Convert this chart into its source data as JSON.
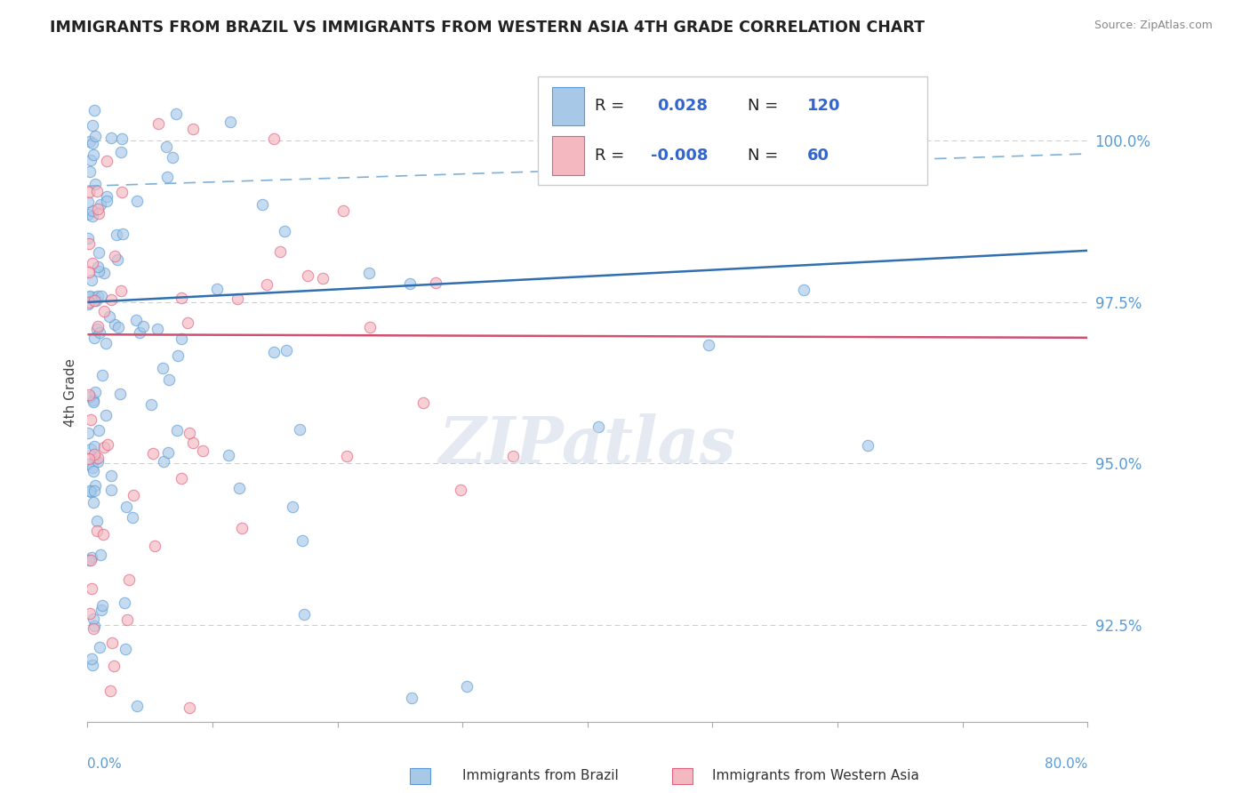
{
  "title": "IMMIGRANTS FROM BRAZIL VS IMMIGRANTS FROM WESTERN ASIA 4TH GRADE CORRELATION CHART",
  "source": "Source: ZipAtlas.com",
  "ylabel": "4th Grade",
  "xlim": [
    0.0,
    80.0
  ],
  "ylim": [
    91.0,
    101.2
  ],
  "ytick_positions": [
    92.5,
    95.0,
    97.5,
    100.0
  ],
  "ytick_labels": [
    "92.5%",
    "95.0%",
    "97.5%",
    "100.0%"
  ],
  "brazil_color": "#a8c8e8",
  "brazil_edge": "#5b9bd5",
  "western_asia_color": "#f4b8c1",
  "western_asia_edge": "#e06080",
  "trendline_brazil_color": "#3070b0",
  "trendline_wa_color": "#d05070",
  "trendline_dashed_color": "#7fb0d8",
  "R_brazil": "0.028",
  "N_brazil": "120",
  "R_wa": "-0.008",
  "N_wa": "60",
  "watermark_text": "ZIPatlas",
  "background_color": "#ffffff",
  "gridline_color": "#cccccc",
  "ytick_color": "#5b9bd5",
  "title_color": "#222222",
  "source_color": "#888888"
}
